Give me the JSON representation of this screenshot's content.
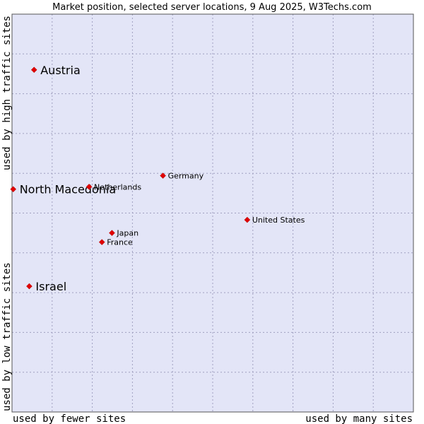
{
  "chart_data": {
    "type": "scatter",
    "title": "Market position, selected server locations, 9 Aug 2025, W3Techs.com",
    "xlabel_left": "used by fewer sites",
    "xlabel_right": "used by many sites",
    "ylabel_bottom": "used by low traffic sites",
    "ylabel_top": "used by high traffic sites",
    "xlim": [
      0,
      10
    ],
    "ylim": [
      0,
      10
    ],
    "grid": true,
    "colors": {
      "plot_bg": "#e3e5f7",
      "grid": "#a0a0c0",
      "frame": "#555555",
      "marker": "#e00000"
    },
    "points": [
      {
        "name": "Austria",
        "x": 0.55,
        "y": 8.6,
        "emphasis": "large"
      },
      {
        "name": "North Macedonia",
        "x": 0.03,
        "y": 5.6,
        "emphasis": "large"
      },
      {
        "name": "Israel",
        "x": 0.43,
        "y": 3.16,
        "emphasis": "large"
      },
      {
        "name": "Netherlands",
        "x": 1.92,
        "y": 5.66,
        "emphasis": "small"
      },
      {
        "name": "Germany",
        "x": 3.76,
        "y": 5.94,
        "emphasis": "small"
      },
      {
        "name": "United States",
        "x": 5.86,
        "y": 4.83,
        "emphasis": "small"
      },
      {
        "name": "Japan",
        "x": 2.49,
        "y": 4.5,
        "emphasis": "small"
      },
      {
        "name": "France",
        "x": 2.24,
        "y": 4.27,
        "emphasis": "small"
      }
    ]
  }
}
